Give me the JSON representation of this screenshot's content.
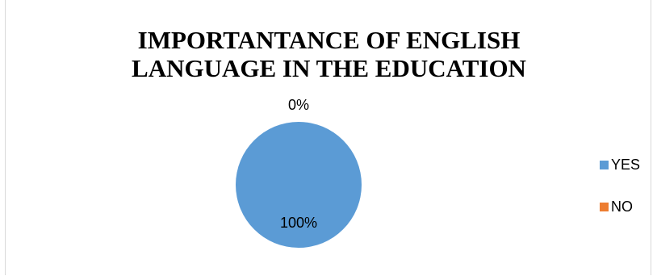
{
  "chart_data": {
    "type": "pie",
    "title": "IMPORTANTANCE OF  ENGLISH\nLANGUAGE IN THE EDUCATION",
    "categories": [
      "YES",
      "NO"
    ],
    "values": [
      100,
      0
    ],
    "data_labels": [
      "100%",
      "0%"
    ],
    "colors": [
      "#5b9bd5",
      "#ed7d31"
    ],
    "legend": {
      "position": "right",
      "entries": [
        "YES",
        "NO"
      ]
    }
  }
}
